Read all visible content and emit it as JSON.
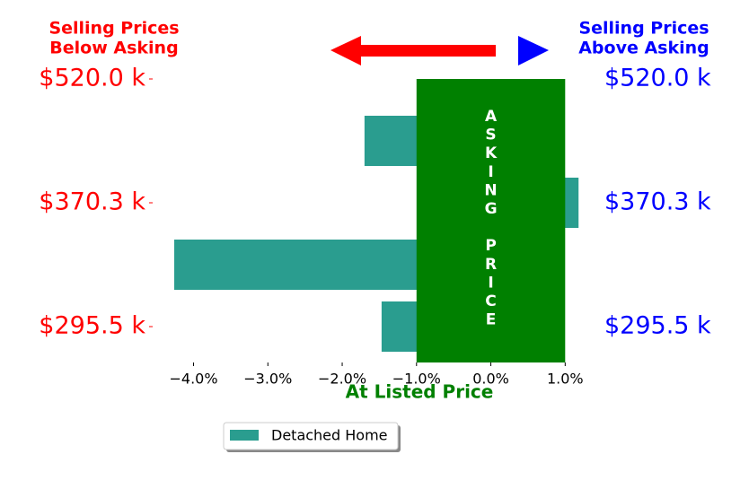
{
  "chart_data": {
    "type": "barh",
    "annotations": {
      "below": [
        "Selling Prices",
        "Below Asking"
      ],
      "above": [
        "Selling Prices",
        "Above Asking"
      ],
      "band": "ASKING PRICE",
      "xlabel": "At Listed Price"
    },
    "categories": [
      "$520.0 k",
      null,
      "$370.3 k",
      null,
      "$295.5 k"
    ],
    "series": [
      {
        "name": "Detached Home",
        "color": "#2a9d8f",
        "values": [
          null,
          -1.7,
          1.18,
          -4.26,
          -1.47
        ]
      }
    ],
    "band_range": [
      -1.0,
      1.0
    ],
    "band_color": "#008000",
    "xlim": [
      -4.55,
      1.25
    ],
    "xticks": [
      {
        "value": -4,
        "label": "−4.0%"
      },
      {
        "value": -3,
        "label": "−3.0%"
      },
      {
        "value": -2,
        "label": "−2.0%"
      },
      {
        "value": -1,
        "label": "−1.0%"
      },
      {
        "value": 0,
        "label": "0.0%"
      },
      {
        "value": 1,
        "label": "1.0%"
      }
    ],
    "left_label_color": "#ff0000",
    "right_label_color": "#0000ff",
    "legend": "lower center"
  }
}
